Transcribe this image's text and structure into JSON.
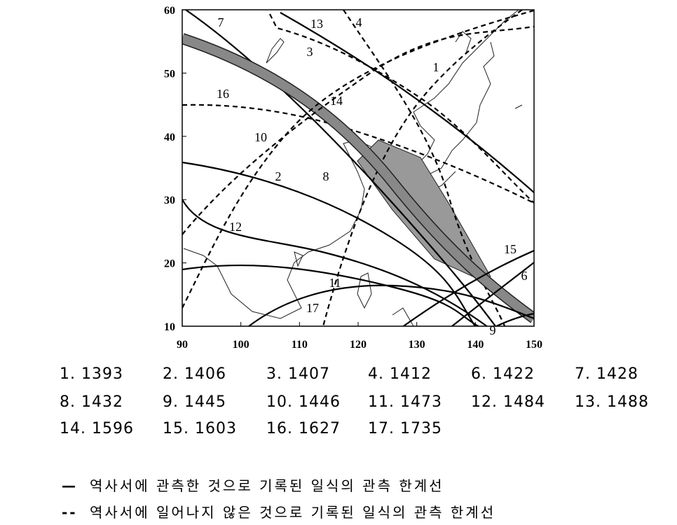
{
  "map": {
    "xticks": [
      90,
      100,
      110,
      120,
      130,
      140,
      150
    ],
    "yticks": [
      10,
      20,
      30,
      40,
      50,
      60
    ],
    "xlim": [
      90,
      150
    ],
    "ylim": [
      10,
      60
    ],
    "lines": [
      {
        "label": "7",
        "style": "solid"
      },
      {
        "label": "13",
        "style": "solid"
      },
      {
        "label": "4",
        "style": "dashed"
      },
      {
        "label": "3",
        "style": "dashed"
      },
      {
        "label": "1",
        "style": "dashed"
      },
      {
        "label": "16",
        "style": "dashed"
      },
      {
        "label": "14",
        "style": "band"
      },
      {
        "label": "10",
        "style": "dashed"
      },
      {
        "label": "2",
        "style": "solid"
      },
      {
        "label": "8",
        "style": "dashed"
      },
      {
        "label": "12",
        "style": "solid"
      },
      {
        "label": "15",
        "style": "solid"
      },
      {
        "label": "6",
        "style": "solid"
      },
      {
        "label": "11",
        "style": "solid"
      },
      {
        "label": "17",
        "style": "solid"
      },
      {
        "label": "9",
        "style": "solid"
      }
    ]
  },
  "legend": [
    "1. 1393",
    "2. 1406",
    "3. 1407",
    "4. 1412",
    "6. 1422",
    "7. 1428",
    "8. 1432",
    "9. 1445",
    "10. 1446",
    "11. 1473",
    "12. 1484",
    "13. 1488",
    "14. 1596",
    "15. 1603",
    "16. 1627",
    "17. 1735"
  ],
  "notes": [
    {
      "symbol": "—",
      "text": "역사서에 관측한 것으로 기록된 일식의 관측 한계선"
    },
    {
      "symbol": "--",
      "text": "역사서에 일어나지 않은 것으로 기록된 일식의 관측 한계선"
    }
  ]
}
